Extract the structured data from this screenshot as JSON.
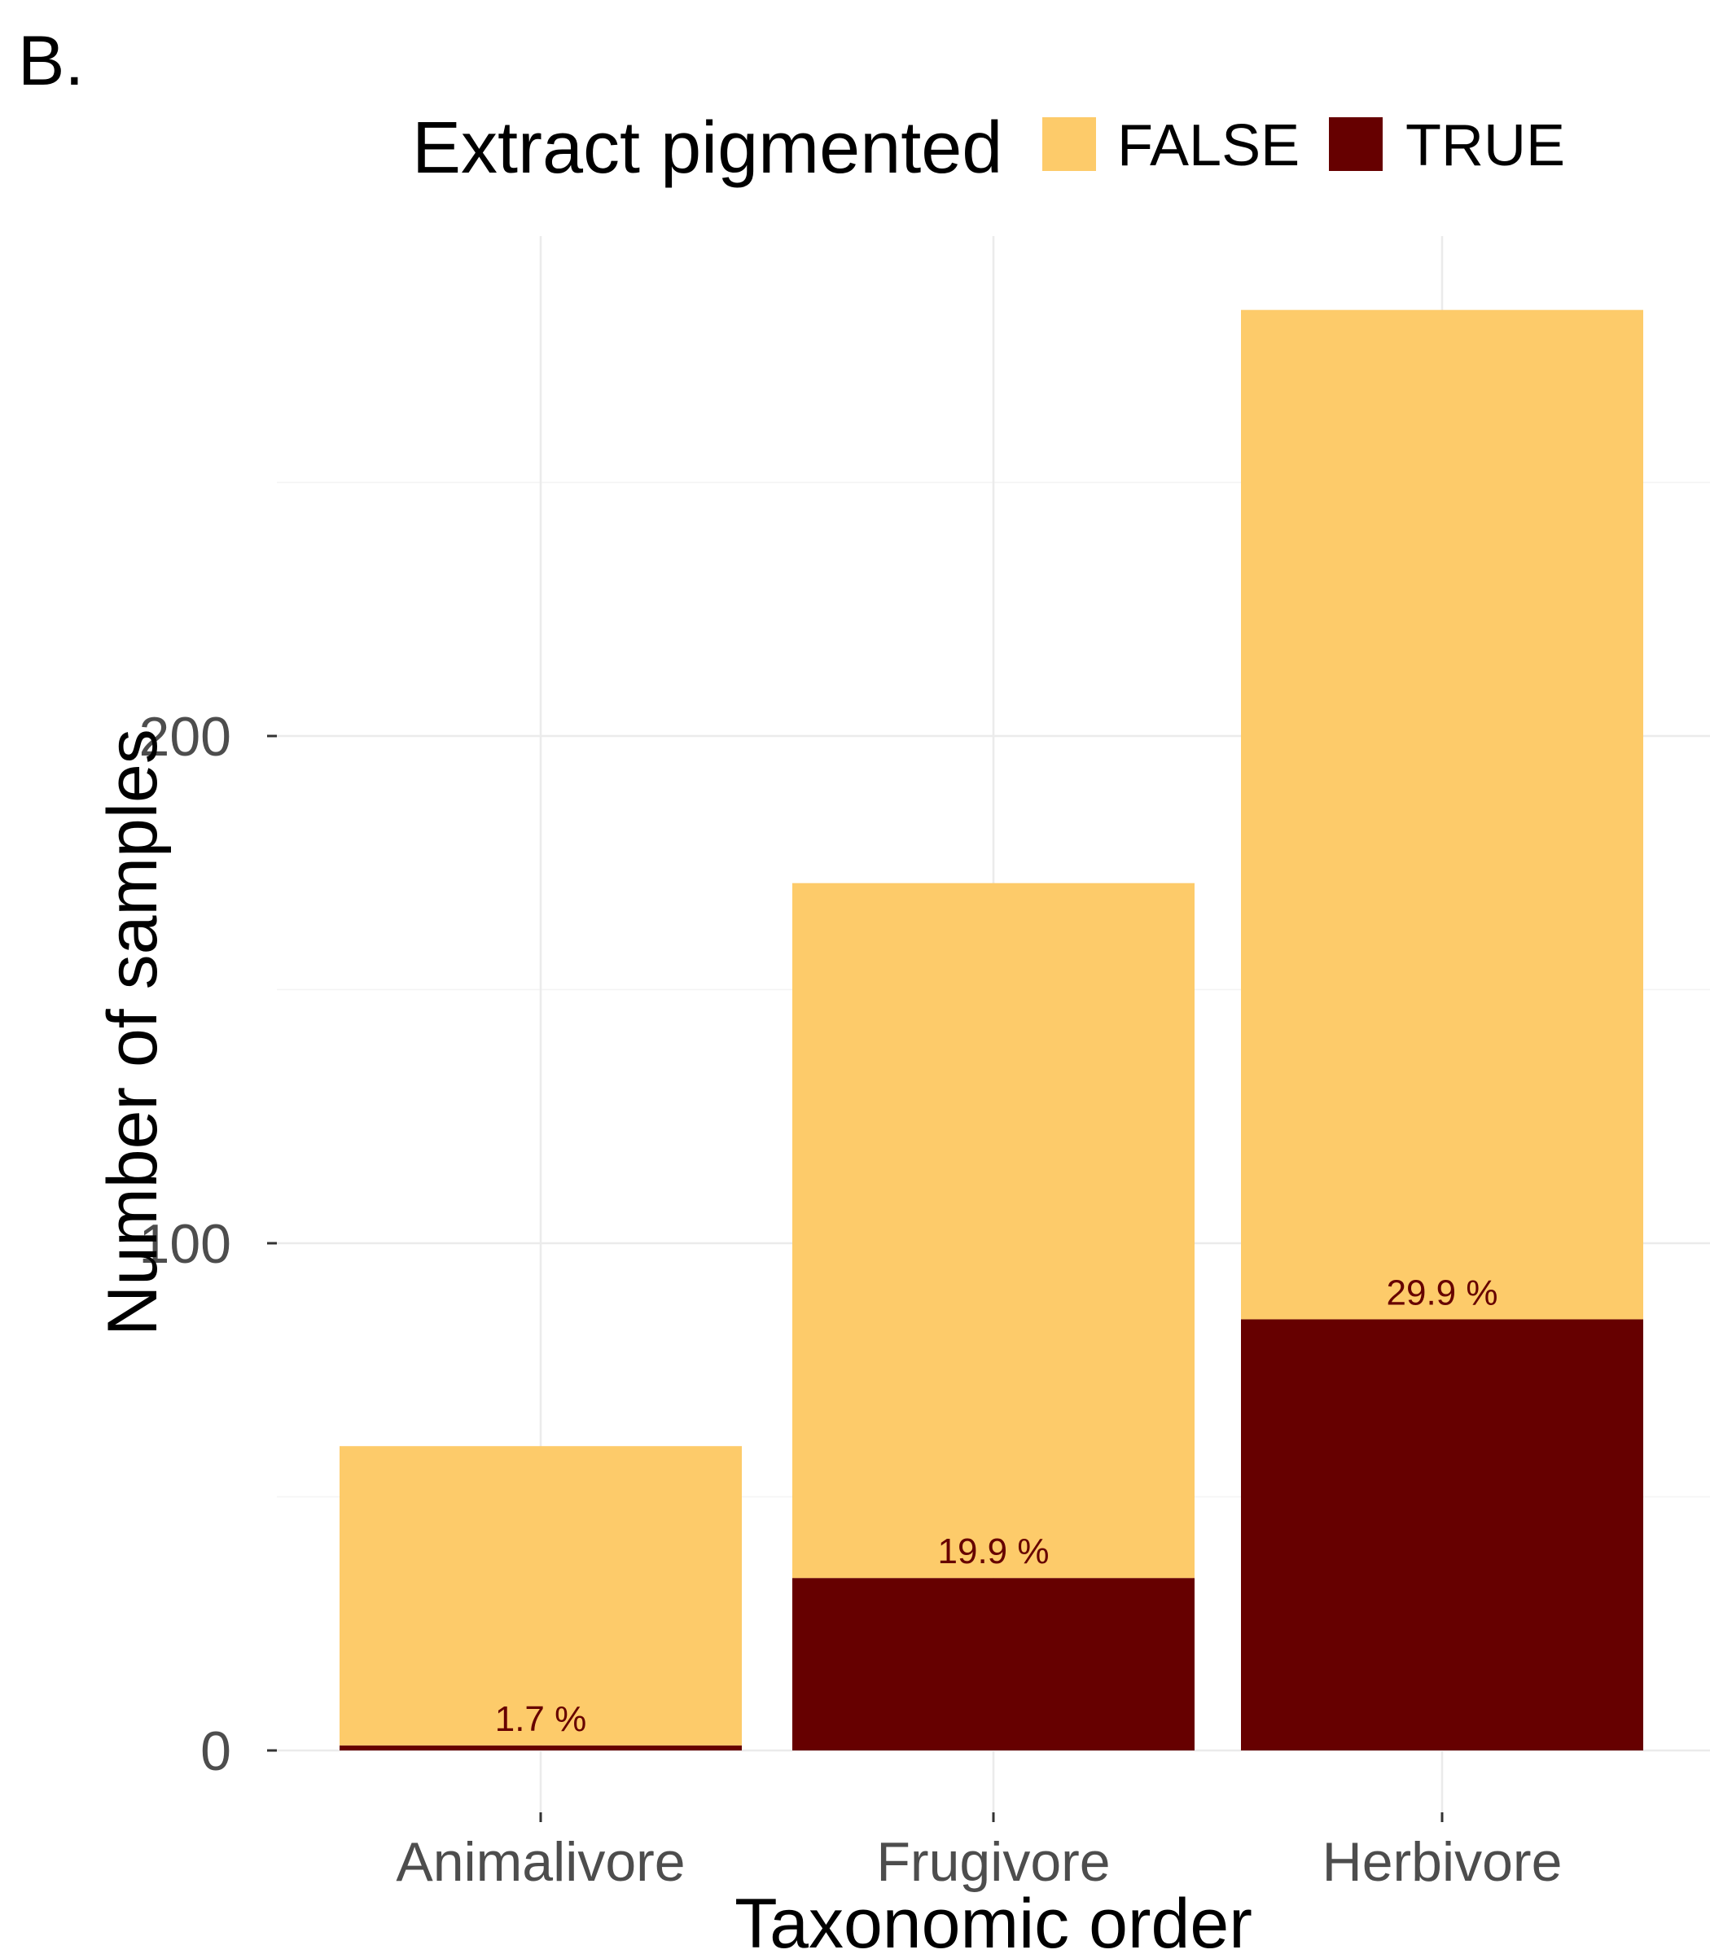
{
  "panel_tag": "B.",
  "colors": {
    "false": "#FDCB6A",
    "true": "#660000",
    "label": "#660000"
  },
  "chart_data": {
    "type": "bar",
    "stacked": true,
    "categories": [
      "Animalivore",
      "Frugivore",
      "Herbivore"
    ],
    "series": [
      {
        "name": "FALSE",
        "values": [
          59,
          137,
          199
        ]
      },
      {
        "name": "TRUE",
        "values": [
          1,
          34,
          85
        ]
      }
    ],
    "bar_labels": [
      "1.7 %",
      "19.9 %",
      "29.9 %"
    ],
    "xlabel": "Taxonomic order",
    "ylabel": "Number of samples",
    "yticks": [
      0,
      100,
      200
    ],
    "ylim": [
      0,
      300
    ],
    "legend": {
      "title": "Extract pigmented",
      "placement": "top"
    },
    "grid": true
  }
}
